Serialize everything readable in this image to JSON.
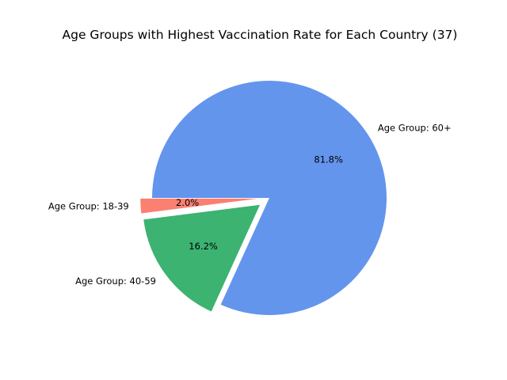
{
  "chart_data": {
    "type": "pie",
    "title": "Age Groups with Highest Vaccination Rate for Each Country (37)",
    "slices": [
      {
        "label": "Age Group: 60+",
        "value": 81.8,
        "pct_label": "81.8%",
        "color": "#6495ED",
        "exploded": false
      },
      {
        "label": "Age Group: 40-59",
        "value": 16.2,
        "pct_label": "16.2%",
        "color": "#3CB371",
        "exploded": true
      },
      {
        "label": "Age Group: 18-39",
        "value": 2.0,
        "pct_label": "2.0%",
        "color": "#FA8072",
        "exploded": true
      }
    ],
    "start_angle_deg": 180,
    "direction": "clockwise",
    "legend": "none"
  }
}
